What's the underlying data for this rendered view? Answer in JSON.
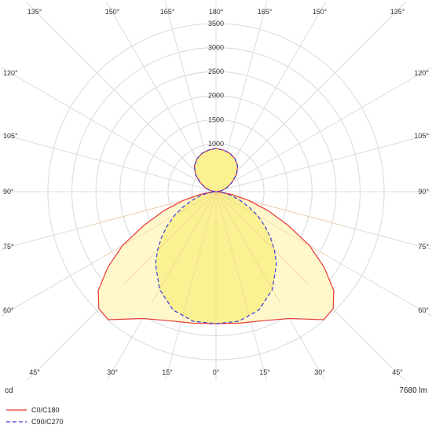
{
  "chart_data": {
    "type": "polar",
    "unit": "cd",
    "flux_label": "7680 lm",
    "radial_max": 3500,
    "radial_ticks": [
      500,
      1000,
      1500,
      2000,
      2500,
      3000,
      3500
    ],
    "radial_tick_labels": [
      "1000",
      "1500",
      "2000",
      "2500",
      "3000",
      "3500"
    ],
    "angle_labels_top": [
      "135°",
      "150°",
      "165°",
      "180°",
      "165°",
      "150°",
      "135°"
    ],
    "angle_labels_left": [
      "120°",
      "105°",
      "90°",
      "75°",
      "60°"
    ],
    "angle_labels_right": [
      "120°",
      "105°",
      "90°",
      "75°",
      "60°"
    ],
    "angle_labels_bottom": [
      "45°",
      "30°",
      "15°",
      "0°",
      "15°",
      "30°",
      "45°"
    ],
    "grid": true,
    "legend_position": "bottom-left",
    "series": [
      {
        "name": "C0/C180",
        "style": "solid",
        "color": "#e8393a",
        "fill": "#fff7c8",
        "angles": [
          0,
          10,
          20,
          30,
          40,
          45,
          50,
          55,
          60,
          65,
          70,
          75,
          80,
          85,
          90,
          100,
          110,
          120,
          130,
          140,
          150,
          160,
          170,
          180
        ],
        "values": [
          2750,
          2780,
          2860,
          3050,
          3480,
          3450,
          3200,
          2750,
          2250,
          1650,
          1150,
          700,
          340,
          90,
          10,
          120,
          240,
          380,
          560,
          700,
          790,
          850,
          880,
          900
        ]
      },
      {
        "name": "C90/C270",
        "style": "dashed",
        "color": "#3c3cd6",
        "fill": "#f9ef8c",
        "angles": [
          0,
          10,
          20,
          30,
          40,
          45,
          50,
          55,
          60,
          65,
          70,
          75,
          80,
          85,
          90,
          100,
          110,
          120,
          130,
          140,
          150,
          160,
          170,
          180
        ],
        "values": [
          2750,
          2740,
          2620,
          2350,
          1960,
          1720,
          1480,
          1240,
          1000,
          760,
          540,
          350,
          190,
          60,
          10,
          120,
          240,
          380,
          560,
          700,
          790,
          850,
          880,
          900
        ]
      }
    ]
  }
}
